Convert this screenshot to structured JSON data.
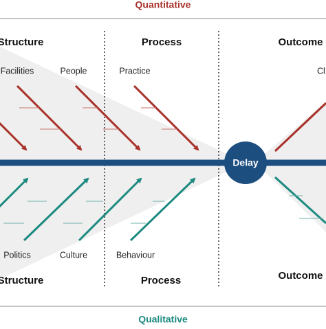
{
  "header": {
    "title": "Quantitative"
  },
  "footer": {
    "title": "Qualitative"
  },
  "top_headings": [
    "Structure",
    "Process",
    "Outcome"
  ],
  "bottom_headings": [
    "Structure",
    "Process",
    "Outcome"
  ],
  "top_causes": [
    "Facilities",
    "People",
    "Practice",
    "Cl"
  ],
  "bottom_causes": [
    "Politics",
    "Culture",
    "Behaviour"
  ],
  "center": {
    "label": "Delay"
  }
}
